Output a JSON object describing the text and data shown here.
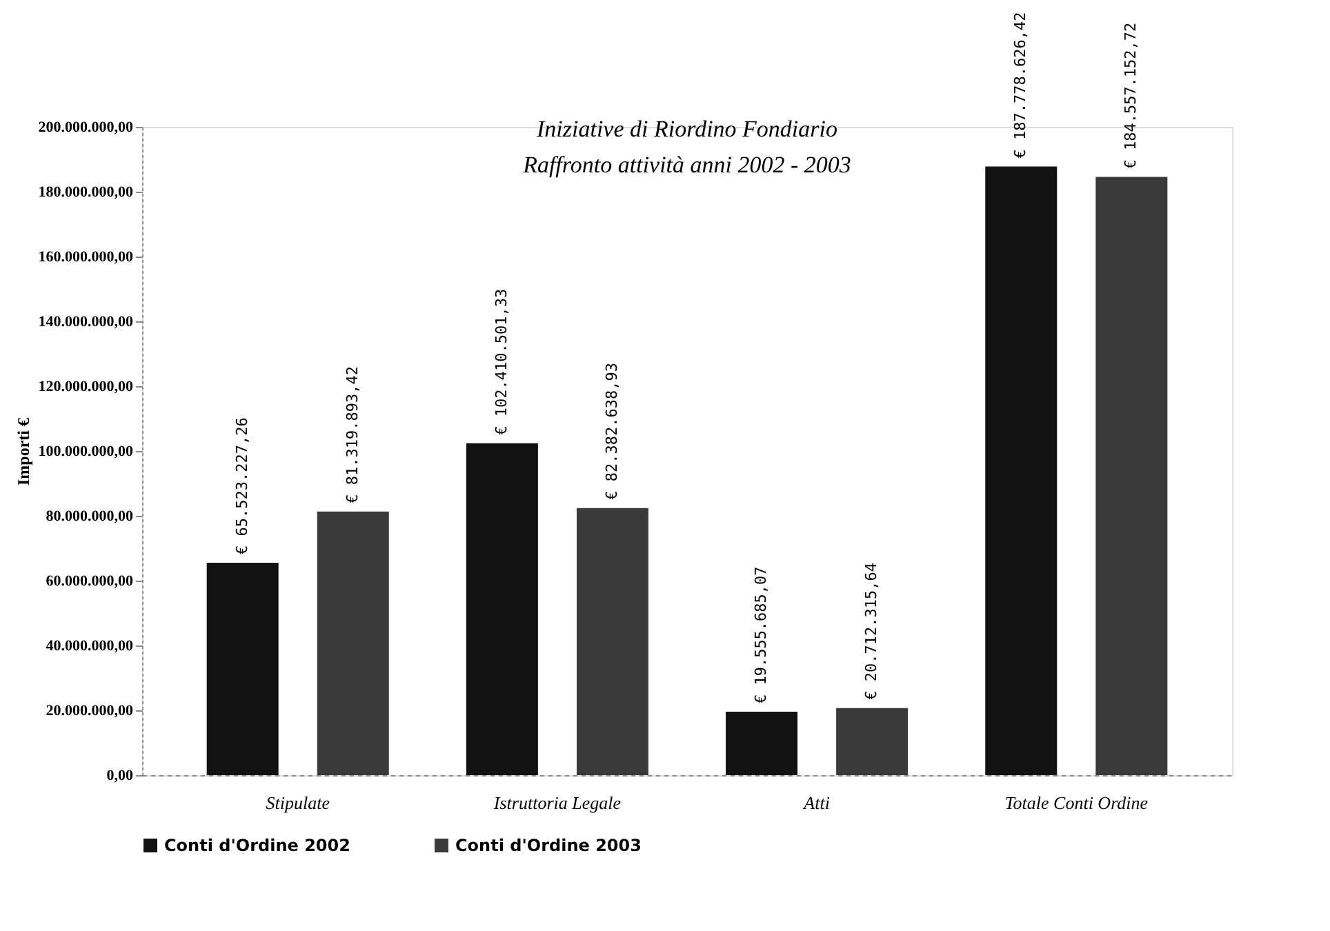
{
  "chart_data": {
    "type": "bar",
    "title": [
      "Iniziative di Riordino Fondiario",
      "Raffronto attività anni 2002 - 2003"
    ],
    "ylabel": "Importi €",
    "categories": [
      "Stipulate",
      "Istruttoria Legale",
      "Atti",
      "Totale Conti Ordine"
    ],
    "series": [
      {
        "name": "Conti d'Ordine 2002",
        "color": "#111111",
        "values": [
          65523227.26,
          102410501.33,
          19555685.07,
          187778626.42
        ],
        "value_labels": [
          "€ 65.523.227,26",
          "€ 102.410.501,33",
          "€ 19.555.685,07",
          "€ 187.778.626,42"
        ]
      },
      {
        "name": "Conti d'Ordine 2003",
        "color": "#3a3a3a",
        "values": [
          81319893.42,
          82382638.93,
          20712315.64,
          184557152.72
        ],
        "value_labels": [
          "€ 81.319.893,42",
          "€ 82.382.638,93",
          "€ 20.712.315,64",
          "€ 184.557.152,72"
        ]
      }
    ],
    "ylim": [
      0,
      200000000
    ],
    "yticks": [
      {
        "value": 0,
        "label": "0,00"
      },
      {
        "value": 20000000,
        "label": "20.000.000,00"
      },
      {
        "value": 40000000,
        "label": "40.000.000,00"
      },
      {
        "value": 60000000,
        "label": "60.000.000,00"
      },
      {
        "value": 80000000,
        "label": "80.000.000,00"
      },
      {
        "value": 100000000,
        "label": "100.000.000,00"
      },
      {
        "value": 120000000,
        "label": "120.000.000,00"
      },
      {
        "value": 140000000,
        "label": "140.000.000,00"
      },
      {
        "value": 160000000,
        "label": "160.000.000,00"
      },
      {
        "value": 180000000,
        "label": "180.000.000,00"
      },
      {
        "value": 200000000,
        "label": "200.000.000,00"
      }
    ],
    "legend": "bottom",
    "grid": false
  }
}
